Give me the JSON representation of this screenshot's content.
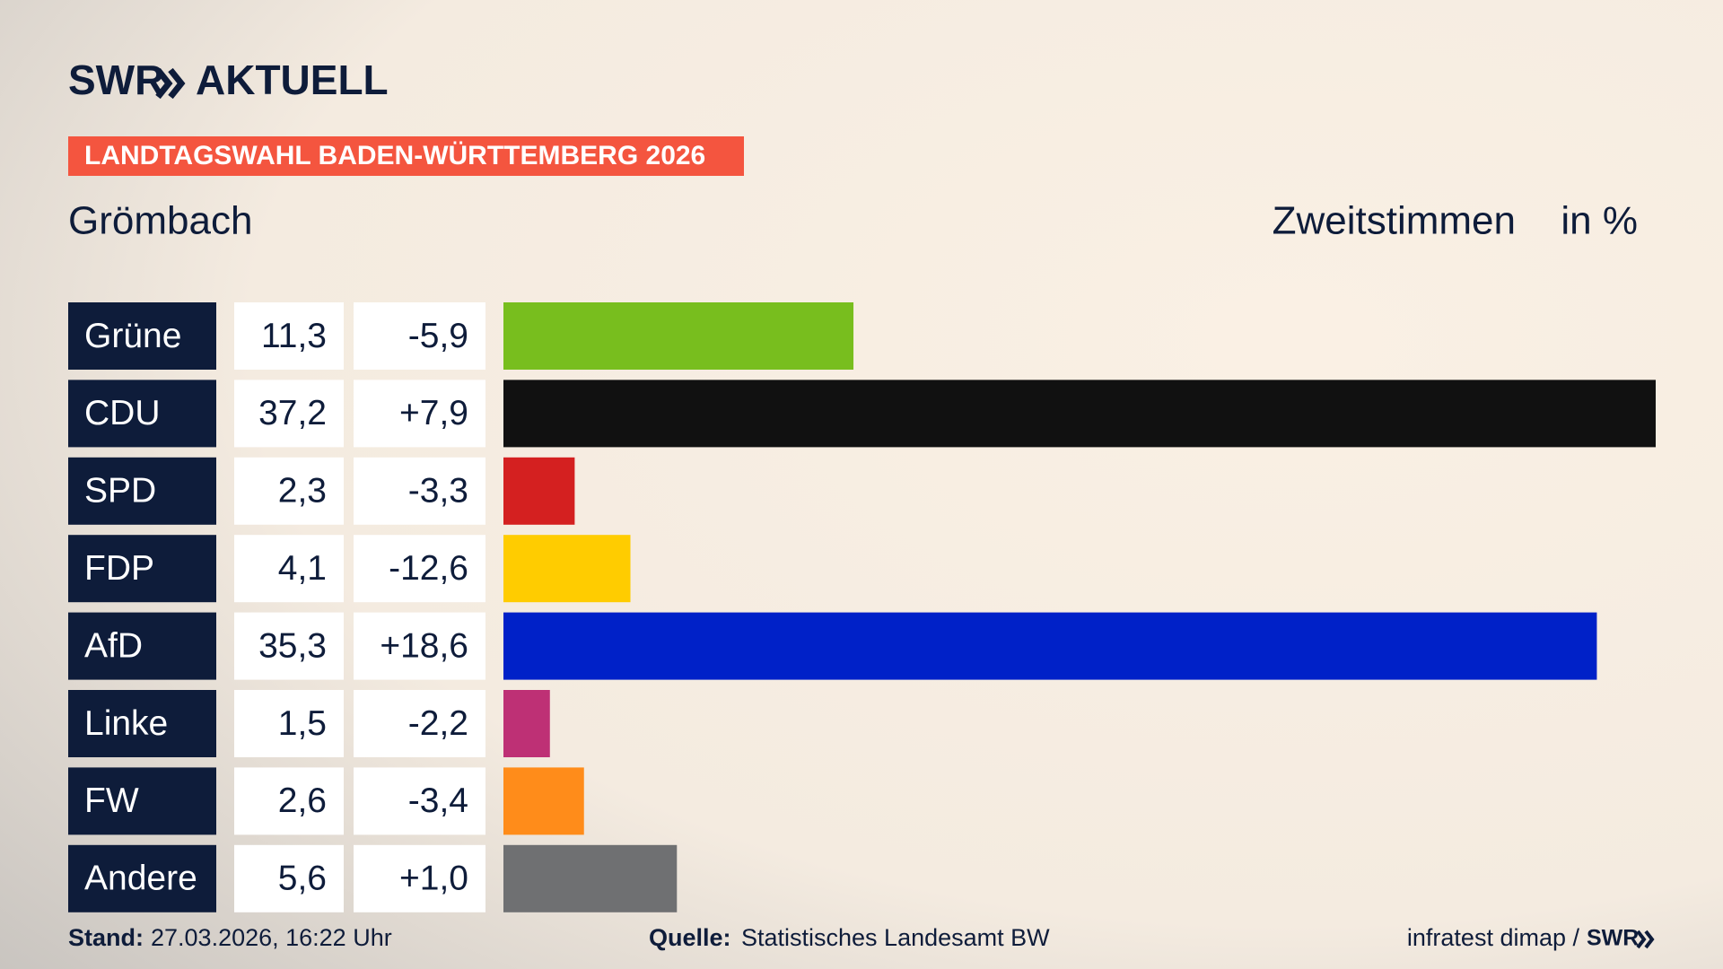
{
  "chart_data": {
    "type": "bar",
    "brand": [
      "SWR",
      "AKTUELL"
    ],
    "kicker": "LANDTAGSWAHL BADEN-WÜRTTEMBERG 2026",
    "title": "Grömbach",
    "measure": "Zweitstimmen",
    "unit": "in %",
    "categories": [
      "Grüne",
      "CDU",
      "SPD",
      "FDP",
      "AfD",
      "Linke",
      "FW",
      "Andere"
    ],
    "values": [
      11.3,
      37.2,
      2.3,
      4.1,
      35.3,
      1.5,
      2.6,
      5.6
    ],
    "value_labels": [
      "11,3",
      "37,2",
      "2,3",
      "4,1",
      "35,3",
      "1,5",
      "2,6",
      "5,6"
    ],
    "changes": [
      "-5,9",
      "+7,9",
      "-3,3",
      "-12,6",
      "+18,6",
      "-2,2",
      "-3,4",
      "+1,0"
    ],
    "colors": [
      "#78be1e",
      "#111111",
      "#d42020",
      "#ffcc00",
      "#0021c8",
      "#be3075",
      "#ff8c1a",
      "#6f7072"
    ],
    "footer": {
      "date_label": "Stand:",
      "date": "27.03.2026, 16:22 Uhr",
      "source_label": "Quelle:",
      "source": "Statistisches Landesamt BW",
      "credit": "infratest dimap /",
      "credit_brand": "SWR"
    }
  }
}
